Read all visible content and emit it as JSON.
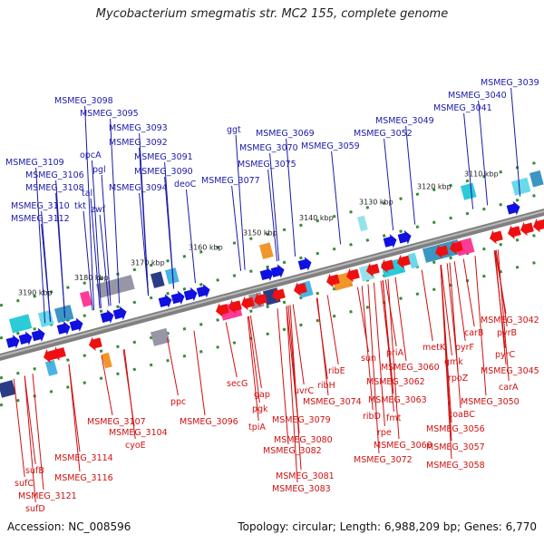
{
  "header": {
    "title": "Mycobacterium smegmatis str. MC2 155, complete genome"
  },
  "footer": {
    "accession": "Accession: NC_008596",
    "summary": "Topology: circular; Length: 6,988,209 bp; Genes: 6,770"
  },
  "colors": {
    "forward_label": "#1a1aa8",
    "reverse_label": "#d01010",
    "forward_arrow": "#1010e0",
    "reverse_arrow": "#ee1010",
    "backbone": "#808080",
    "tick_dash": "#3a8a3a"
  },
  "scale_ticks": [
    "3110 kbp",
    "3120 kbp",
    "3130 kbp",
    "3140 kbp",
    "3150 kbp",
    "3160 kbp",
    "3170 kbp",
    "3180 kbp",
    "3190 kbp"
  ],
  "forward_labels": [
    "MSMEG_3039",
    "MSMEG_3040",
    "MSMEG_3041",
    "MSMEG_3049",
    "MSMEG_3052",
    "MSMEG_3059",
    "MSMEG_3069",
    "MSMEG_3070",
    "MSMEG_3075",
    "MSMEG_3077",
    "ggt",
    "deoC",
    "MSMEG_3090",
    "MSMEG_3094",
    "MSMEG_3091",
    "MSMEG_3092",
    "MSMEG_3093",
    "MSMEG_3095",
    "MSMEG_3098",
    "opcA",
    "pgl",
    "zwf",
    "tkt",
    "tal",
    "MSMEG_3106",
    "MSMEG_3108",
    "MSMEG_3109",
    "MSMEG_3110",
    "MSMEG_3112"
  ],
  "reverse_labels": [
    "MSMEG_3042",
    "pyrB",
    "pyrC",
    "carB",
    "MSMEG_3045",
    "carA",
    "pyrF",
    "metK",
    "gmk",
    "rpoZ",
    "MSMEG_3050",
    "coaBC",
    "MSMEG_3056",
    "MSMEG_3057",
    "MSMEG_3058",
    "priA",
    "sun",
    "MSMEG_3060",
    "MSMEG_3062",
    "MSMEG_3063",
    "fmt",
    "ribD",
    "rpe",
    "MSMEG_3068",
    "MSMEG_3072",
    "ribE",
    "ribH",
    "MSMEG_3074",
    "uvrC",
    "gap",
    "pgk",
    "tpiA",
    "secG",
    "MSMEG_3079",
    "MSMEG_3080",
    "MSMEG_3082",
    "MSMEG_3081",
    "MSMEG_3083",
    "ppc",
    "MSMEG_3096",
    "MSMEG_3107",
    "MSMEG_3104",
    "cyoE",
    "MSMEG_3114",
    "MSMEG_3116",
    "sufB",
    "sufC",
    "MSMEG_3121",
    "sufD"
  ]
}
